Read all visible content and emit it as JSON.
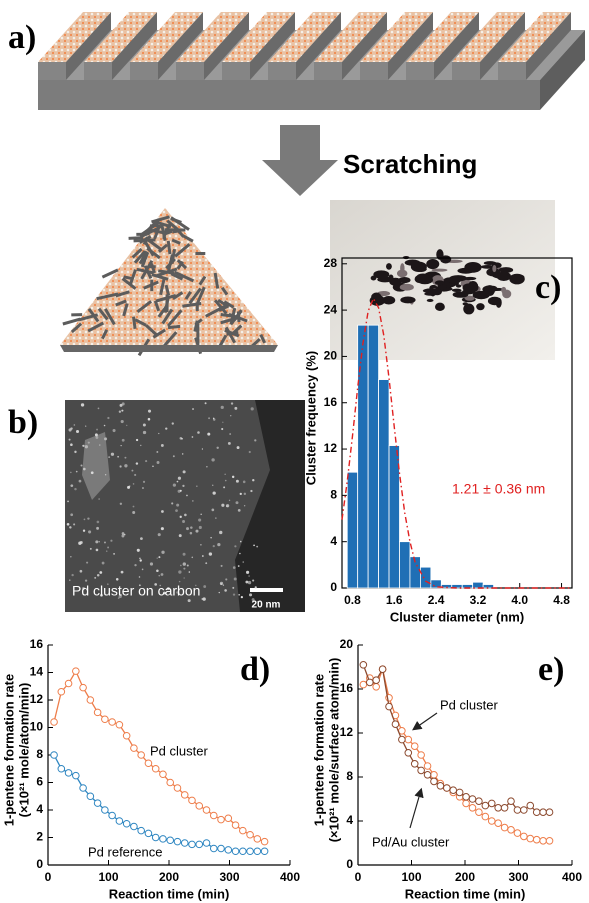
{
  "figure": {
    "panel_labels": [
      "a)",
      "b)",
      "c)",
      "d)",
      "e)"
    ],
    "scratching": "Scratching",
    "image_caption": "Pd cluster on carbon",
    "scale_bar": "20 nm"
  },
  "chart_data": [
    {
      "type": "histogram",
      "xlabel": "Cluster diameter (nm)",
      "ylabel": "Cluster frequency (%)",
      "color": "#1f6fb5",
      "bins": [
        0.7,
        0.9,
        1.1,
        1.3,
        1.5,
        1.7,
        1.9,
        2.1,
        2.3,
        2.5,
        2.7,
        2.9,
        3.1,
        3.3,
        3.5
      ],
      "values": [
        10,
        22.7,
        22.7,
        18,
        12.3,
        4,
        2.7,
        1.8,
        0.7,
        0.3,
        0.3,
        0.3,
        0.5,
        0.3
      ],
      "fit": {
        "color": "#e02020",
        "x": [
          0.6,
          0.7,
          0.8,
          0.9,
          1.0,
          1.1,
          1.2,
          1.3,
          1.4,
          1.5,
          1.6,
          1.7,
          1.8,
          1.9,
          2.0,
          2.2,
          2.4,
          2.8,
          3.5,
          5.0
        ],
        "values": [
          5.9,
          9.2,
          13.1,
          17.3,
          21.1,
          23.9,
          25,
          24.2,
          21.8,
          18.1,
          13.9,
          9.9,
          6.5,
          4.0,
          2.2,
          0.6,
          0.1,
          0,
          0,
          0
        ]
      },
      "annotation": "1.21 ± 0.36 nm",
      "xlim": [
        0.6,
        5.0
      ],
      "ylim": [
        0,
        28.5
      ],
      "xticks": [
        0.8,
        1.6,
        2.4,
        3.2,
        {
          "value": 4,
          "label": "4.0"
        },
        4.8
      ],
      "yticks": [
        0,
        4,
        8,
        12,
        16,
        20,
        24,
        28
      ]
    },
    {
      "type": "line",
      "xlabel": "Reaction time (min)",
      "ylabel": [
        "1-pentene formation rate",
        "(×10²¹ mole/atom/min)"
      ],
      "x": [
        10,
        22,
        34,
        46,
        58,
        70,
        82,
        94,
        106,
        118,
        130,
        142,
        154,
        166,
        178,
        190,
        202,
        214,
        226,
        238,
        250,
        262,
        274,
        286,
        298,
        310,
        322,
        334,
        346,
        358
      ],
      "series": [
        {
          "name": "Pd cluster",
          "color": "#ee7d4a",
          "values": [
            10.4,
            12.6,
            13.2,
            14.1,
            12.9,
            12.0,
            11.1,
            10.6,
            10.4,
            10.2,
            9.4,
            8.5,
            8.0,
            7.4,
            7.0,
            6.6,
            6.0,
            5.6,
            5.1,
            4.7,
            4.3,
            4.0,
            3.6,
            3.3,
            3.4,
            2.9,
            2.5,
            2.2,
            1.9,
            1.7
          ]
        },
        {
          "name": "Pd reference",
          "color": "#2e86c1",
          "values": [
            8.0,
            7.0,
            6.7,
            6.5,
            5.6,
            5.0,
            4.5,
            4.0,
            3.6,
            3.2,
            3.0,
            2.8,
            2.5,
            2.3,
            2.0,
            1.9,
            1.8,
            1.7,
            1.6,
            1.5,
            1.5,
            1.6,
            1.2,
            1.2,
            1.1,
            1.0,
            1.0,
            1.0,
            1.0,
            1.0
          ]
        }
      ],
      "xlim": [
        0,
        400
      ],
      "ylim": [
        0,
        16
      ],
      "xticks": [
        0,
        100,
        200,
        300,
        400
      ],
      "yticks": [
        0,
        2,
        4,
        6,
        8,
        10,
        12,
        14,
        16
      ]
    },
    {
      "type": "line",
      "xlabel": "Reaction time (min)",
      "ylabel": [
        "1-pentene formation rate",
        "(×10²¹ mole/surface atom/min)"
      ],
      "x": [
        10,
        22,
        34,
        46,
        58,
        70,
        82,
        94,
        106,
        118,
        130,
        142,
        154,
        166,
        178,
        190,
        202,
        214,
        226,
        238,
        250,
        262,
        274,
        286,
        298,
        310,
        322,
        334,
        346,
        358
      ],
      "series": [
        {
          "name": "Pd cluster",
          "color": "#ee7d4a",
          "values": [
            16.4,
            17.0,
            16.2,
            17.8,
            15.2,
            13.6,
            12.2,
            11.4,
            10.8,
            10.0,
            9.0,
            8.2,
            7.4,
            7.0,
            6.6,
            6.2,
            5.6,
            5.2,
            4.8,
            4.4,
            4.0,
            3.8,
            3.4,
            3.2,
            2.9,
            2.6,
            2.4,
            2.3,
            2.2,
            2.2
          ]
        },
        {
          "name": "Pd/Au cluster",
          "color": "#8c4a2f",
          "values": [
            18.2,
            16.6,
            16.8,
            17.8,
            14.4,
            12.8,
            11.4,
            10.2,
            9.2,
            8.6,
            8.2,
            7.6,
            7.2,
            7.0,
            6.8,
            6.6,
            6.2,
            6.0,
            5.8,
            5.4,
            5.6,
            5.2,
            5.2,
            5.8,
            5.0,
            5.0,
            5.4,
            4.8,
            4.8,
            4.8
          ]
        }
      ],
      "xlim": [
        0,
        400
      ],
      "ylim": [
        0,
        20
      ],
      "xticks": [
        0,
        100,
        200,
        300,
        400
      ],
      "yticks": [
        0,
        4,
        8,
        12,
        16,
        20
      ]
    }
  ]
}
